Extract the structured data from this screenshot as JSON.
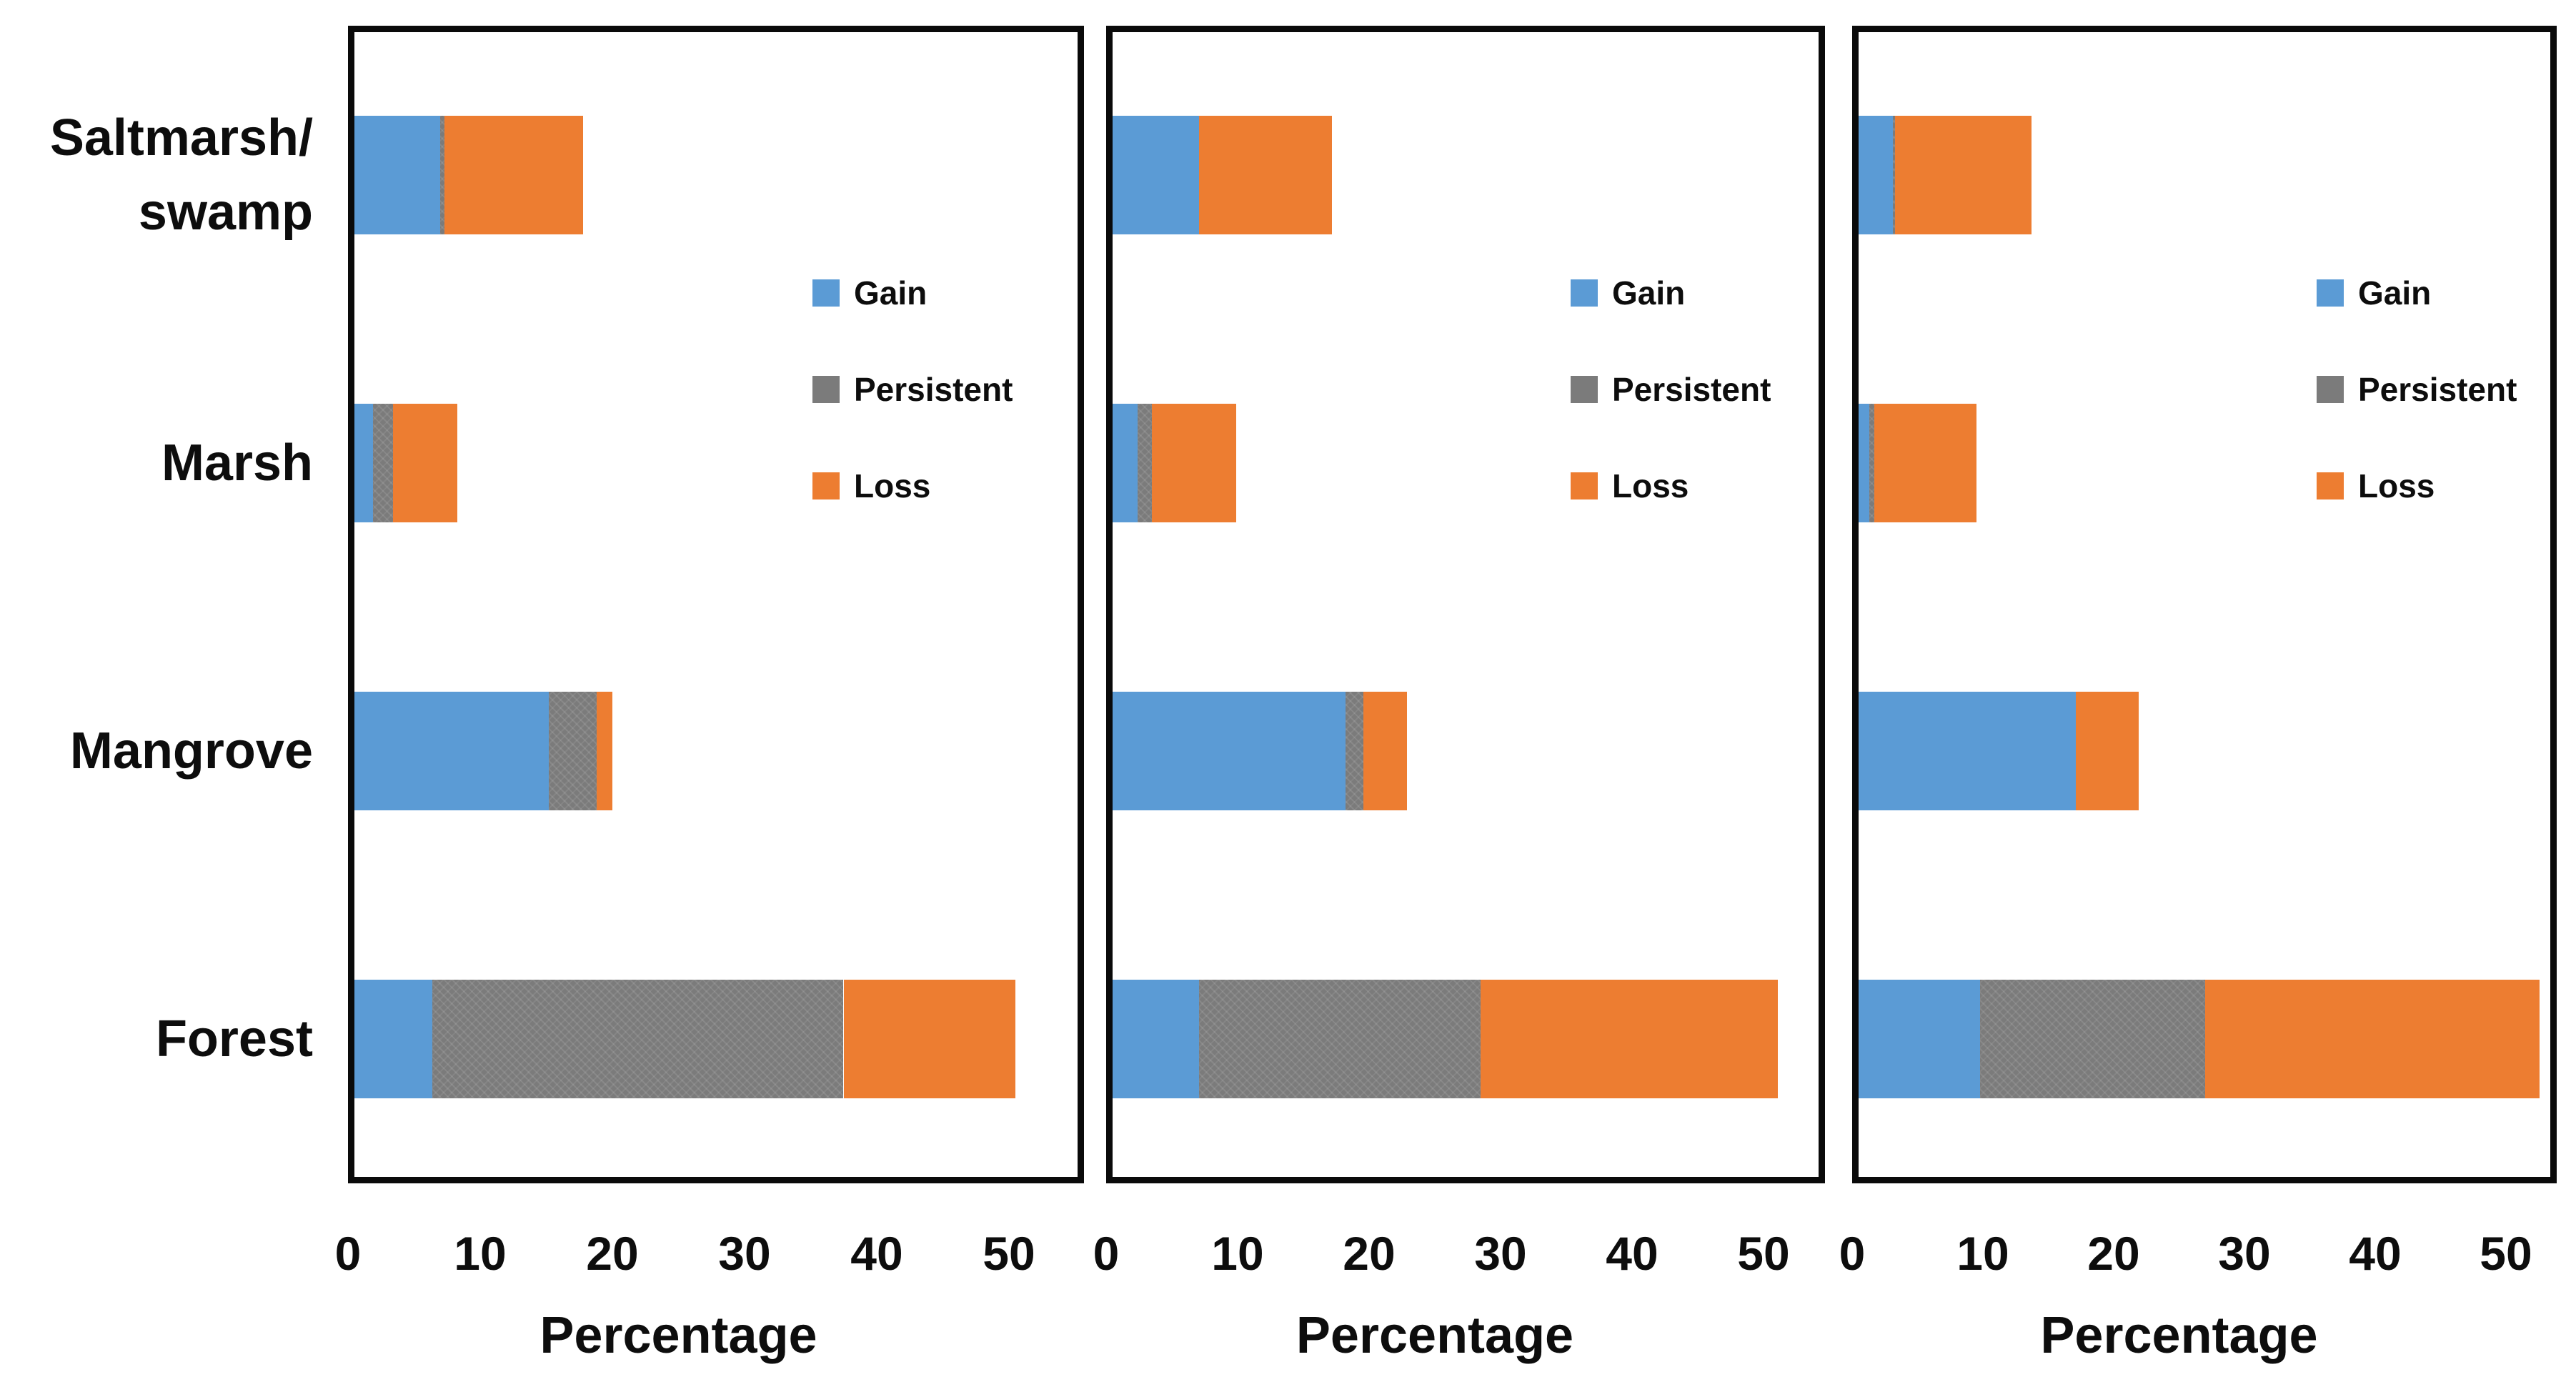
{
  "chart_data": [
    {
      "type": "bar",
      "orientation": "horizontal",
      "panel": "left",
      "categories": [
        "Saltmarsh/swamp",
        "Marsh",
        "Mangrove",
        "Forest"
      ],
      "series": [
        {
          "name": "Gain",
          "values": [
            6.5,
            1.4,
            14.7,
            5.9
          ]
        },
        {
          "name": "Persistent",
          "values": [
            0.3,
            1.5,
            3.6,
            31.1
          ]
        },
        {
          "name": "Loss",
          "values": [
            10.5,
            4.9,
            1.2,
            13.0
          ]
        }
      ],
      "xlabel": "Percentage",
      "xlim": [
        0,
        55
      ],
      "xticks": [
        0,
        10,
        20,
        30,
        40,
        50
      ],
      "grid": false,
      "legend_position": "inside-center-right"
    },
    {
      "type": "bar",
      "orientation": "horizontal",
      "panel": "middle",
      "categories": [
        "Saltmarsh/swamp",
        "Marsh",
        "Mangrove",
        "Forest"
      ],
      "series": [
        {
          "name": "Gain",
          "values": [
            6.6,
            1.9,
            17.7,
            6.6
          ]
        },
        {
          "name": "Persistent",
          "values": [
            0.0,
            1.1,
            1.4,
            21.4
          ]
        },
        {
          "name": "Loss",
          "values": [
            10.1,
            6.4,
            3.3,
            22.6
          ]
        }
      ],
      "xlabel": "Percentage",
      "xlim": [
        0,
        54
      ],
      "xticks": [
        0,
        10,
        20,
        30,
        40,
        50
      ],
      "grid": false,
      "legend_position": "inside-center-right"
    },
    {
      "type": "bar",
      "orientation": "horizontal",
      "panel": "right",
      "categories": [
        "Saltmarsh/swamp",
        "Marsh",
        "Mangrove",
        "Forest"
      ],
      "series": [
        {
          "name": "Gain",
          "values": [
            2.6,
            0.8,
            16.6,
            9.3
          ]
        },
        {
          "name": "Persistent",
          "values": [
            0.2,
            0.4,
            0.0,
            17.2
          ]
        },
        {
          "name": "Loss",
          "values": [
            10.4,
            7.8,
            4.8,
            25.6
          ]
        }
      ],
      "xlabel": "Percentage",
      "xlim": [
        0,
        53
      ],
      "xticks": [
        0,
        10,
        20,
        30,
        40,
        50
      ],
      "grid": false,
      "legend_position": "inside-center-right"
    }
  ],
  "category_labels": [
    {
      "lines": [
        "Saltmarsh/",
        "swamp"
      ]
    },
    {
      "lines": [
        "Marsh"
      ]
    },
    {
      "lines": [
        "Mangrove"
      ]
    },
    {
      "lines": [
        "Forest"
      ]
    }
  ],
  "legend": {
    "items": [
      {
        "label": "Gain",
        "color_key": "gain"
      },
      {
        "label": "Persistent",
        "color_key": "persistent"
      },
      {
        "label": "Loss",
        "color_key": "loss"
      }
    ]
  },
  "x_axis": {
    "ticks": [
      "0",
      "10",
      "20",
      "30",
      "40",
      "50"
    ],
    "label": "Percentage"
  },
  "colors": {
    "gain": "#5B9BD5",
    "persistent": "#7B7B7B",
    "loss": "#ED7D31",
    "border": "#0a0a0a",
    "text": "#0d0d0d",
    "background": "#ffffff"
  }
}
